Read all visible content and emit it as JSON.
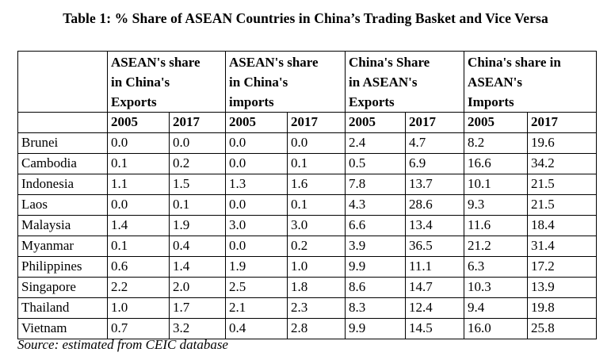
{
  "title": "Table 1: % Share of ASEAN Countries in China’s Trading Basket and Vice Versa",
  "groups": [
    {
      "line1": "ASEAN's  share",
      "line2": "in  China's",
      "line3": "Exports"
    },
    {
      "line1": "ASEAN's share",
      "line2": "in  China's",
      "line3": "imports"
    },
    {
      "line1": "China's  Share",
      "line2": "in  ASEAN's",
      "line3": "Exports"
    },
    {
      "line1": "China's share in",
      "line2": "ASEAN's",
      "line3": "Imports"
    }
  ],
  "years": [
    "2005",
    "2017",
    "2005",
    "2017",
    "2005",
    "2017",
    "2005",
    "2017"
  ],
  "rows": [
    {
      "country": "Brunei",
      "values": [
        "0.0",
        "0.0",
        "0.0",
        "0.0",
        "2.4",
        "4.7",
        "8.2",
        "19.6"
      ]
    },
    {
      "country": "Cambodia",
      "values": [
        "0.1",
        "0.2",
        "0.0",
        "0.1",
        "0.5",
        "6.9",
        "16.6",
        "34.2"
      ]
    },
    {
      "country": "Indonesia",
      "values": [
        "1.1",
        "1.5",
        "1.3",
        "1.6",
        "7.8",
        "13.7",
        "10.1",
        "21.5"
      ]
    },
    {
      "country": "Laos",
      "values": [
        "0.0",
        "0.1",
        "0.0",
        "0.1",
        "4.3",
        "28.6",
        "9.3",
        "21.5"
      ]
    },
    {
      "country": "Malaysia",
      "values": [
        "1.4",
        "1.9",
        "3.0",
        "3.0",
        "6.6",
        "13.4",
        "11.6",
        "18.4"
      ]
    },
    {
      "country": "Myanmar",
      "values": [
        "0.1",
        "0.4",
        "0.0",
        "0.2",
        "3.9",
        "36.5",
        "21.2",
        "31.4"
      ]
    },
    {
      "country": "Philippines",
      "values": [
        "0.6",
        "1.4",
        "1.9",
        "1.0",
        "9.9",
        "11.1",
        "6.3",
        "17.2"
      ]
    },
    {
      "country": "Singapore",
      "values": [
        "2.2",
        "2.0",
        "2.5",
        "1.8",
        "8.6",
        "14.7",
        "10.3",
        "13.9"
      ]
    },
    {
      "country": "Thailand",
      "values": [
        "1.0",
        "1.7",
        "2.1",
        "2.3",
        "8.3",
        "12.4",
        "9.4",
        "19.8"
      ]
    },
    {
      "country": "Vietnam",
      "values": [
        "0.7",
        "3.2",
        "0.4",
        "2.8",
        "9.9",
        "14.5",
        "16.0",
        "25.8"
      ]
    }
  ],
  "source": "Source: estimated from CEIC database"
}
